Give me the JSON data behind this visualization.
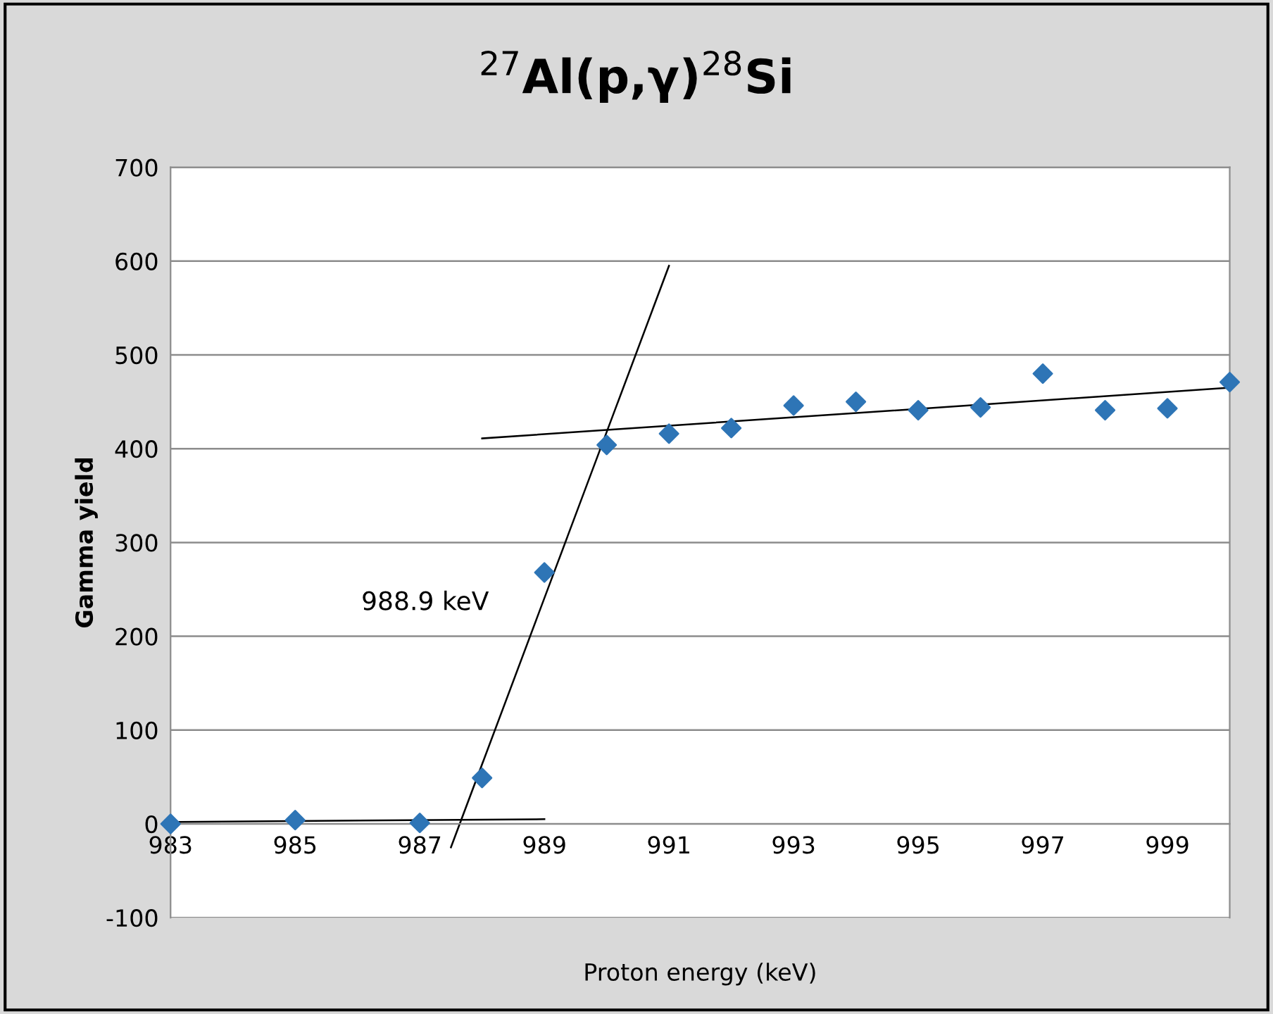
{
  "chart_data": {
    "type": "scatter",
    "title": "$^{27}$Al(p,γ)$^{28}$Si",
    "xlabel": "Proton energy (keV)",
    "ylabel": "Gamma yield",
    "annotations": [
      "988.9 keV"
    ],
    "series": [
      {
        "color": "#2e75b6",
        "marker": "diamond",
        "x": [
          983,
          985,
          987,
          988,
          989,
          990,
          991,
          992,
          993,
          994,
          995,
          996,
          997,
          998,
          999,
          1000
        ],
        "values": [
          0,
          4,
          1,
          49,
          268,
          404,
          416,
          422,
          446,
          450,
          441,
          444,
          480,
          441,
          443,
          471
        ]
      },
      {
        "type": "line",
        "color": "#000000",
        "marker": "none",
        "x": [
          983,
          989
        ],
        "values": [
          2,
          5
        ]
      },
      {
        "type": "line",
        "color": "#000000",
        "marker": "none",
        "x": [
          987.5,
          991
        ],
        "values": [
          -25,
          595
        ]
      },
      {
        "type": "line",
        "color": "#000000",
        "marker": "none",
        "x": [
          988,
          1000
        ],
        "values": [
          411,
          465
        ]
      }
    ],
    "xlim": [
      983,
      1000
    ],
    "xticks": [
      983,
      985,
      987,
      989,
      991,
      993,
      995,
      997,
      999
    ],
    "ylim": [
      -100,
      700
    ],
    "yticks": [
      -100,
      0,
      100,
      200,
      300,
      400,
      500,
      600,
      700
    ],
    "grid": "y",
    "legend": false
  }
}
